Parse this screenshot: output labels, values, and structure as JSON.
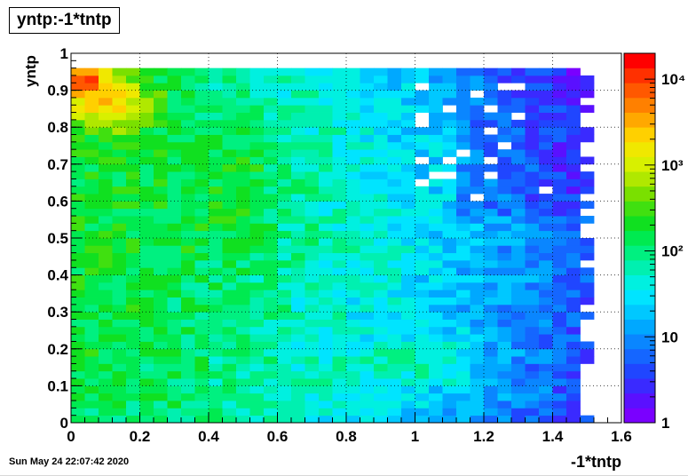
{
  "title": "yntp:-1*tntp",
  "footer": {
    "date": "Sun May 24 22:07:42 2020"
  },
  "chart_data": {
    "type": "heatmap",
    "title": "yntp:-1*tntp",
    "xlabel": "-1*tntp",
    "ylabel": "yntp",
    "xlim": [
      0,
      1.6
    ],
    "ylim": [
      0,
      1
    ],
    "x_ticks": [
      "0",
      "0.2",
      "0.4",
      "0.6",
      "0.8",
      "1",
      "1.2",
      "1.4",
      "1.6"
    ],
    "y_ticks": [
      "0",
      "0.1",
      "0.2",
      "0.3",
      "0.4",
      "0.5",
      "0.6",
      "0.7",
      "0.8",
      "0.9",
      "1"
    ],
    "colorbar": {
      "scale": "log",
      "range": [
        1,
        20000
      ],
      "labels": [
        "1",
        "10",
        "10²",
        "10³",
        "10⁴"
      ]
    },
    "grid": true,
    "bins": {
      "x_bin_width": 0.04,
      "y_bin_width": 0.02,
      "x_data_max": 1.52,
      "y_data_max": 0.96
    },
    "palette": [
      "#7a00ff",
      "#5a10ff",
      "#3a2aff",
      "#2046ff",
      "#1566ff",
      "#0a86ff",
      "#00a8ff",
      "#00c8ff",
      "#00e4ff",
      "#00f0e0",
      "#00f0b0",
      "#00f080",
      "#00ea50",
      "#10e020",
      "#40e010",
      "#7ae000",
      "#b0e800",
      "#d8f000",
      "#f0e800",
      "#ffd000",
      "#ffa800",
      "#ff8000",
      "#ff5800",
      "#ff3000",
      "#ff0000"
    ]
  }
}
